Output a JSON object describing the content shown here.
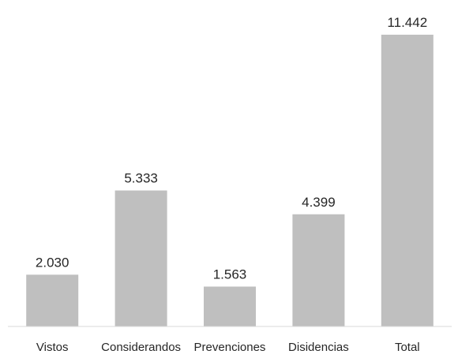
{
  "chart_data": {
    "type": "bar",
    "categories": [
      "Vistos",
      "Considerandos",
      "Prevenciones",
      "Disidencias",
      "Total"
    ],
    "values": [
      2030,
      5333,
      1563,
      4399,
      11442
    ],
    "data_labels": [
      "2.030",
      "5.333",
      "1.563",
      "4.399",
      "11.442"
    ],
    "title": "",
    "xlabel": "",
    "ylabel": "",
    "ylim": [
      0,
      11442
    ],
    "grid": false,
    "legend": "none",
    "bar_color": "#bfbfbf",
    "axis_color": "#d9d9d9",
    "text_color": "#262626"
  }
}
